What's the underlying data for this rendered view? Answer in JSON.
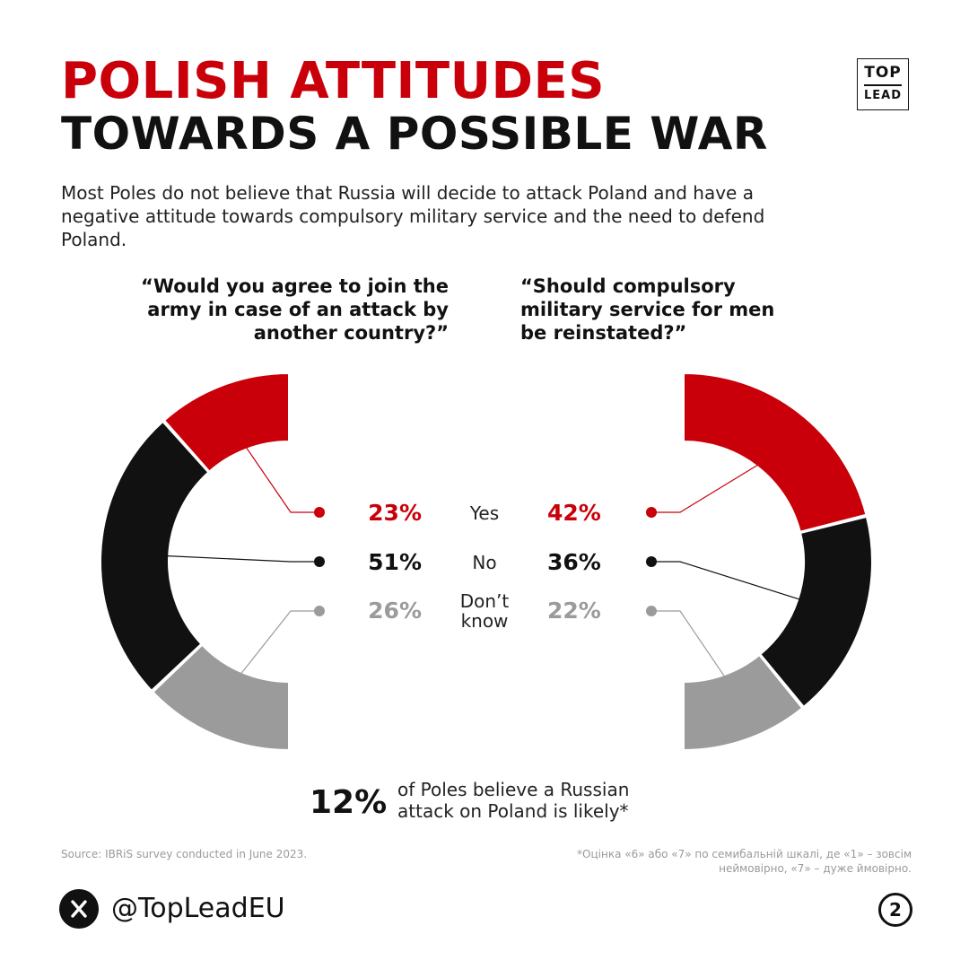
{
  "header": {
    "title_line1": "POLISH ATTITUDES",
    "title_line2": "TOWARDS A POSSIBLE WAR",
    "subtitle": "Most Poles do not believe that Russia will decide to attack Poland and have a negative attitude towards compulsory military service and the need to defend Poland."
  },
  "logo": {
    "line1": "TOP",
    "line2": "LEAD"
  },
  "colors": {
    "yes": "#c9000a",
    "no": "#111111",
    "dont_know": "#9b9b9b"
  },
  "chart_data": [
    {
      "type": "pie",
      "title": "“Would you agree to join the army in case of an attack by another country?”",
      "categories": [
        "Yes",
        "No",
        "Don’t know"
      ],
      "values": [
        23,
        51,
        26
      ],
      "labels": [
        "23%",
        "51%",
        "26%"
      ]
    },
    {
      "type": "pie",
      "title": "“Should compulsory military service for men be reinstated?”",
      "categories": [
        "Yes",
        "No",
        "Don’t know"
      ],
      "values": [
        42,
        36,
        22
      ],
      "labels": [
        "42%",
        "36%",
        "22%"
      ]
    }
  ],
  "legend": {
    "yes": "Yes",
    "no": "No",
    "dont_know_line1": "Don’t",
    "dont_know_line2": "know"
  },
  "kpi": {
    "value": "12%",
    "text": "of Poles believe a Russian attack on Poland is likely*"
  },
  "footer": {
    "source": "Source: IBRiS survey conducted in June 2023.",
    "footnote": "*Оцінка «6» або «7» по семибальній шкалі,  де «1» – зовсім неймовірно, «7» – дуже ймовірно.",
    "social_icon": "x-logo-icon",
    "handle": "@TopLeadEU",
    "page": "2"
  }
}
